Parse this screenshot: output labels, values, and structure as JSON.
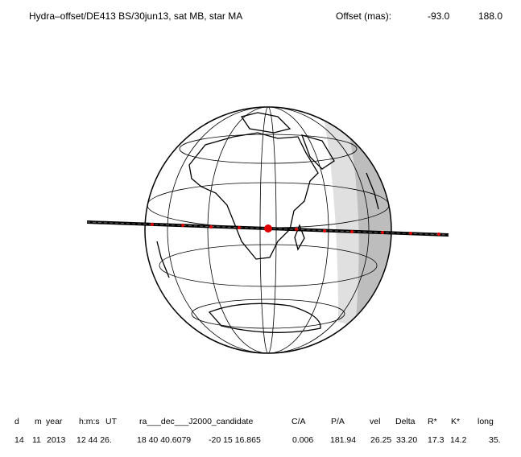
{
  "header": {
    "title": "Hydra–offset/DE413 BS/30jun13, sat MB, star MA",
    "offset_label": "Offset (mas):",
    "offset_x": "-93.0",
    "offset_y": "188.0"
  },
  "table": {
    "columns": [
      "d",
      "m",
      "year",
      "h:m:s",
      "UT",
      "ra___dec___J2000_candidate",
      "C/A",
      "P/A",
      "vel",
      "Delta",
      "R*",
      "K*",
      "long"
    ],
    "row": [
      "14",
      "11",
      "2013",
      "12 44 26.",
      "18 40 40.6079",
      "-20 15 16.865",
      "0.006",
      "181.94",
      "26.25",
      "33.20",
      "17.3",
      "14.2",
      "35."
    ]
  }
}
